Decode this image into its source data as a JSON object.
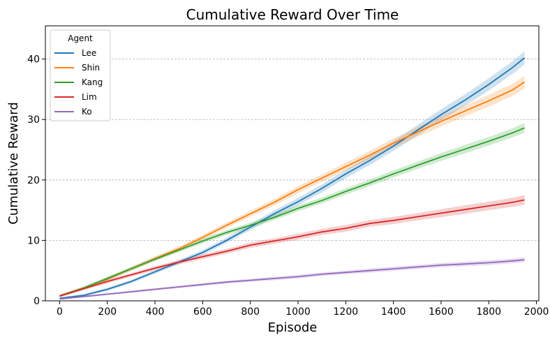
{
  "chart_data": {
    "type": "line",
    "title": "Cumulative Reward Over Time",
    "xlabel": "Episode",
    "ylabel": "Cumulative Reward",
    "xlim": [
      -60,
      2010
    ],
    "ylim": [
      0,
      45.5
    ],
    "xticks": [
      0,
      200,
      400,
      600,
      800,
      1000,
      1200,
      1400,
      1600,
      1800,
      2000
    ],
    "yticks": [
      0,
      10,
      20,
      30,
      40
    ],
    "grid": "horizontal-dashed",
    "legend": {
      "title": "Agent",
      "placement": "top-left"
    },
    "x": [
      0,
      100,
      200,
      300,
      400,
      500,
      600,
      700,
      800,
      900,
      1000,
      1100,
      1200,
      1300,
      1400,
      1500,
      1600,
      1700,
      1800,
      1900,
      1950
    ],
    "series": [
      {
        "name": "Lee",
        "color": "#1f77b4",
        "band": [
          0.2,
          0.2,
          0.25,
          0.3,
          0.3,
          0.35,
          0.4,
          0.45,
          0.5,
          0.55,
          0.6,
          0.65,
          0.7,
          0.75,
          0.8,
          0.85,
          0.9,
          0.95,
          1.0,
          1.05,
          1.1
        ],
        "values": [
          0.4,
          0.9,
          1.9,
          3.2,
          4.8,
          6.4,
          8.0,
          10.0,
          12.2,
          14.4,
          16.4,
          18.6,
          21.0,
          23.2,
          25.6,
          28.2,
          30.8,
          33.2,
          35.8,
          38.6,
          40.2
        ]
      },
      {
        "name": "Shin",
        "color": "#ff7f0e",
        "band": [
          0.2,
          0.3,
          0.3,
          0.35,
          0.35,
          0.4,
          0.4,
          0.45,
          0.5,
          0.55,
          0.6,
          0.6,
          0.65,
          0.7,
          0.75,
          0.8,
          0.85,
          0.9,
          0.95,
          1.0,
          1.05
        ],
        "values": [
          0.8,
          2.1,
          3.6,
          5.3,
          7.0,
          8.6,
          10.5,
          12.5,
          14.4,
          16.3,
          18.4,
          20.3,
          22.2,
          24.1,
          26.1,
          27.9,
          29.7,
          31.4,
          33.1,
          34.9,
          36.2
        ]
      },
      {
        "name": "Kang",
        "color": "#2ca02c",
        "band": [
          0.2,
          0.25,
          0.3,
          0.3,
          0.35,
          0.35,
          0.4,
          0.4,
          0.45,
          0.45,
          0.5,
          0.5,
          0.55,
          0.55,
          0.6,
          0.6,
          0.65,
          0.7,
          0.7,
          0.75,
          0.8
        ],
        "values": [
          0.8,
          2.1,
          3.7,
          5.3,
          6.9,
          8.4,
          9.9,
          11.3,
          12.5,
          13.8,
          15.3,
          16.6,
          18.1,
          19.5,
          21.0,
          22.4,
          23.8,
          25.1,
          26.4,
          27.8,
          28.6
        ]
      },
      {
        "name": "Lim",
        "color": "#d62728",
        "band": [
          0.2,
          0.25,
          0.3,
          0.3,
          0.35,
          0.35,
          0.4,
          0.4,
          0.45,
          0.45,
          0.5,
          0.5,
          0.55,
          0.55,
          0.6,
          0.6,
          0.65,
          0.7,
          0.7,
          0.75,
          0.8
        ],
        "values": [
          0.8,
          2.0,
          3.2,
          4.3,
          5.4,
          6.4,
          7.3,
          8.2,
          9.2,
          9.9,
          10.6,
          11.4,
          12.0,
          12.8,
          13.3,
          13.9,
          14.5,
          15.1,
          15.7,
          16.3,
          16.7
        ]
      },
      {
        "name": "Ko",
        "color": "#9467bd",
        "band": [
          0.1,
          0.15,
          0.15,
          0.2,
          0.2,
          0.2,
          0.25,
          0.25,
          0.25,
          0.3,
          0.3,
          0.3,
          0.3,
          0.35,
          0.35,
          0.35,
          0.35,
          0.4,
          0.4,
          0.4,
          0.4
        ],
        "values": [
          0.3,
          0.7,
          1.1,
          1.5,
          1.9,
          2.3,
          2.7,
          3.1,
          3.4,
          3.7,
          4.0,
          4.4,
          4.7,
          5.0,
          5.3,
          5.6,
          5.9,
          6.1,
          6.3,
          6.6,
          6.8
        ]
      }
    ]
  }
}
